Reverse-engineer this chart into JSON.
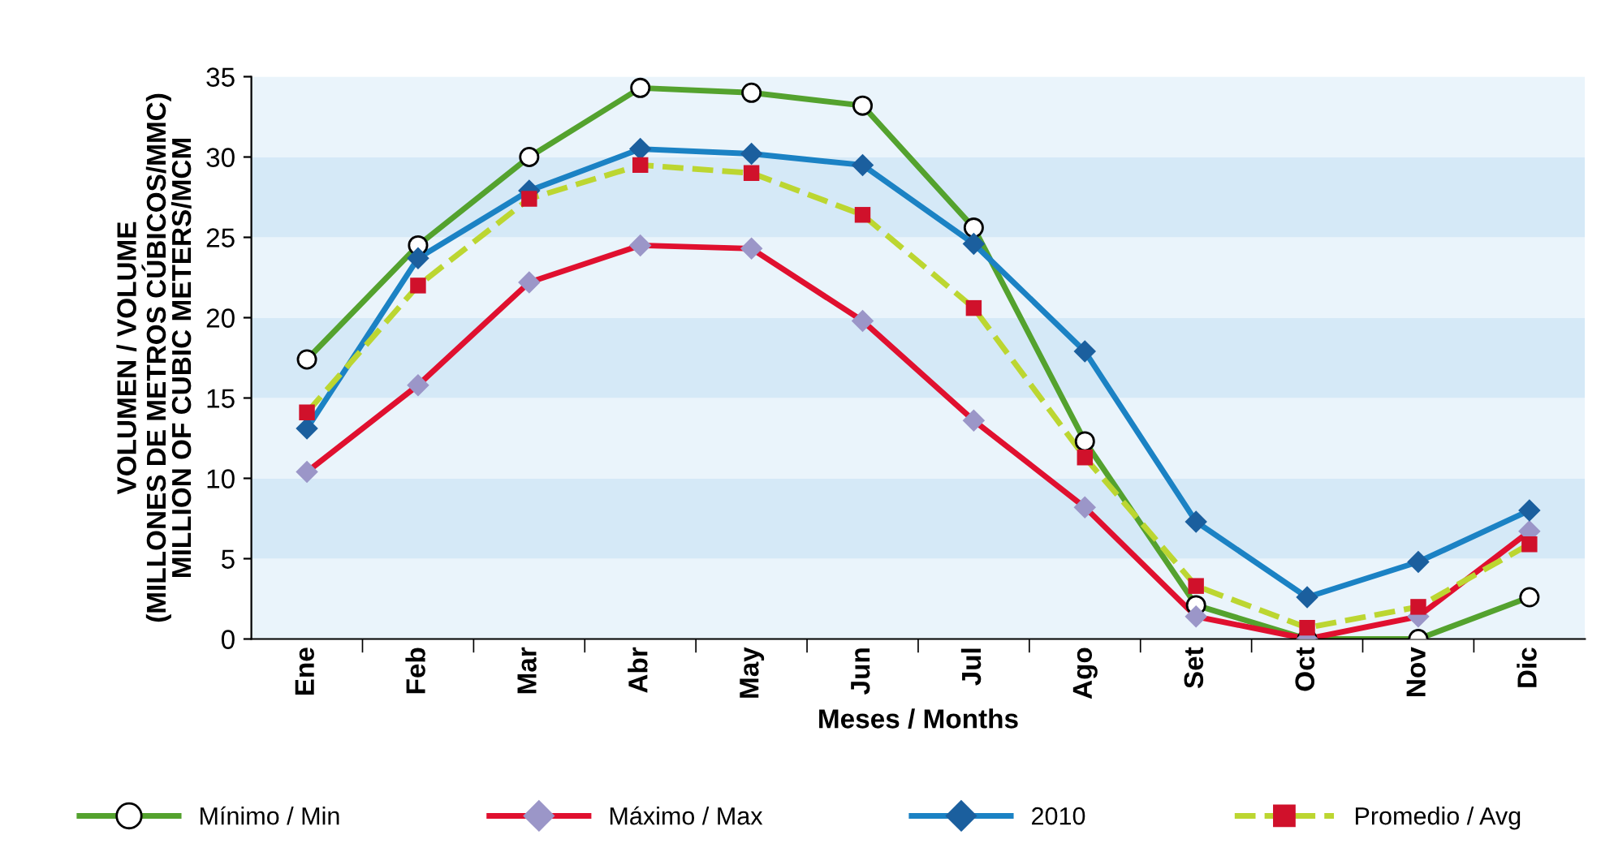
{
  "chart_data": {
    "type": "line",
    "xlabel": "Meses / Months",
    "ylabel": "VOLUMEN / VOLUME\n(MILLONES DE METROS CÚBICOS/MMC)\nMILLION OF CUBIC METERS/MCM",
    "categories": [
      "Ene",
      "Feb",
      "Mar",
      "Abr",
      "May",
      "Jun",
      "Jul",
      "Ago",
      "Set",
      "Oct",
      "Nov",
      "Dic"
    ],
    "series": [
      {
        "name": "Mínimo / Min",
        "color": "#54a22e",
        "marker": "circle",
        "line_style": "solid",
        "colors": [
          "#ffffff",
          "#ffffff",
          "#ffffff",
          "#ffffff",
          "#ffffff",
          "#ffffff",
          "#ffffff",
          "#ffffff",
          "#ffffff",
          "#ffffff",
          "#ffffff",
          "#ffffff"
        ],
        "values": [
          17.4,
          24.5,
          30.0,
          34.3,
          34.0,
          33.2,
          25.6,
          12.3,
          2.1,
          0,
          0,
          2.6
        ]
      },
      {
        "name": "Máximo / Max",
        "color": "#e0102f",
        "marker": "diamond",
        "line_style": "solid",
        "colors": [
          "#9b96c8",
          "#9b96c8",
          "#9b96c8",
          "#9b96c8",
          "#9b96c8",
          "#9b96c8",
          "#9b96c8",
          "#9b96c8",
          "#9b96c8",
          "#9b96c8",
          "#9b96c8",
          "#9b96c8"
        ],
        "values": [
          10.4,
          15.8,
          22.2,
          24.5,
          24.3,
          19.8,
          13.6,
          8.2,
          1.4,
          0,
          1.4,
          6.7
        ]
      },
      {
        "name": "2010",
        "color": "#1b82c4",
        "marker": "diamond",
        "line_style": "solid",
        "colors": [
          "#1b5f9e",
          "#1b5f9e",
          "#1b5f9e",
          "#1b5f9e",
          "#1b5f9e",
          "#1b5f9e",
          "#1b5f9e",
          "#1b5f9e",
          "#1b5f9e",
          "#1b5f9e",
          "#1b5f9e",
          "#1b5f9e"
        ],
        "values": [
          13.1,
          23.7,
          27.9,
          30.5,
          30.2,
          29.5,
          24.6,
          17.9,
          7.3,
          2.6,
          4.8,
          8.0
        ]
      },
      {
        "name": "Promedio / Avg",
        "color": "#bcd631",
        "marker": "square",
        "line_style": "dashed",
        "colors": [
          "#d0112b",
          "#d0112b",
          "#d0112b",
          "#d0112b",
          "#d0112b",
          "#d0112b",
          "#d0112b",
          "#d0112b",
          "#d0112b",
          "#d0112b",
          "#d0112b",
          "#d0112b"
        ],
        "values": [
          14.1,
          22.0,
          27.4,
          29.5,
          29.0,
          26.4,
          20.6,
          11.3,
          3.3,
          0.7,
          2.0,
          5.9
        ]
      }
    ],
    "ylim": [
      0,
      35
    ],
    "yticks": [
      0,
      5,
      10,
      15,
      20,
      25,
      30,
      35
    ],
    "bands": [
      {
        "axis": "y",
        "from": 0,
        "to": 5,
        "color": "#eaf4fb"
      },
      {
        "axis": "y",
        "from": 5,
        "to": 10,
        "color": "#d5e9f7"
      },
      {
        "axis": "y",
        "from": 10,
        "to": 15,
        "color": "#eaf4fb"
      },
      {
        "axis": "y",
        "from": 15,
        "to": 20,
        "color": "#d5e9f7"
      },
      {
        "axis": "y",
        "from": 20,
        "to": 25,
        "color": "#eaf4fb"
      },
      {
        "axis": "y",
        "from": 25,
        "to": 30,
        "color": "#d5e9f7"
      },
      {
        "axis": "y",
        "from": 30,
        "to": 35,
        "color": "#eaf4fb"
      }
    ],
    "grid": false,
    "legend": "bottom"
  }
}
